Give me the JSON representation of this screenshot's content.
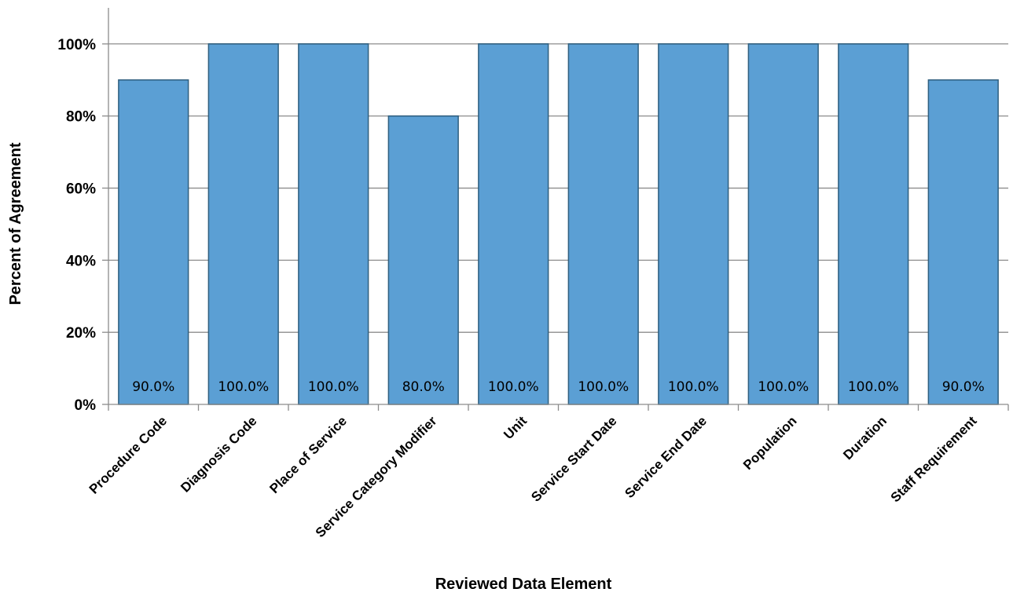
{
  "chart_data": {
    "type": "bar",
    "categories": [
      "Procedure Code",
      "Diagnosis Code",
      "Place of Service",
      "Service Category Modifier",
      "Unit",
      "Service Start Date",
      "Service End Date",
      "Population",
      "Duration",
      "Staff Requirement"
    ],
    "values": [
      90,
      100,
      100,
      80,
      100,
      100,
      100,
      100,
      100,
      90
    ],
    "data_labels": [
      "90.0%",
      "100.0%",
      "100.0%",
      "80.0%",
      "100.0%",
      "100.0%",
      "100.0%",
      "100.0%",
      "100.0%",
      "90.0%"
    ],
    "title": "",
    "xlabel": "Reviewed Data Element",
    "ylabel": "Percent of Agreement",
    "ylim": [
      0,
      110
    ],
    "yticks": [
      0,
      20,
      40,
      60,
      80,
      100
    ],
    "ytick_labels": [
      "0%",
      "20%",
      "40%",
      "60%",
      "80%",
      "100%"
    ],
    "grid": true,
    "legend": "none",
    "bar_color": "#5b9fd4",
    "bar_edge_color": "#2f5f7f",
    "grid_color": "#8c8c8c"
  }
}
